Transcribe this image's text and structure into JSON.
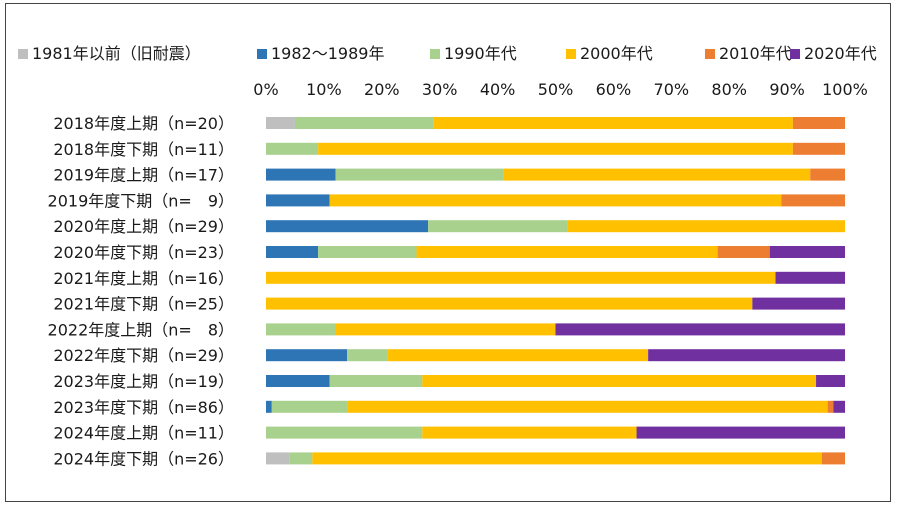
{
  "chart_data": {
    "type": "bar",
    "orientation": "horizontal",
    "stacked": "percent",
    "x_ticks": [
      "0%",
      "10%",
      "20%",
      "30%",
      "40%",
      "50%",
      "60%",
      "70%",
      "80%",
      "90%",
      "100%"
    ],
    "xlim": [
      0,
      100
    ],
    "legend_position": "top",
    "grid": false,
    "categories": [
      "2018年度上期（n=20）",
      "2018年度下期（n=11）",
      "2019年度上期（n=17）",
      "2019年度下期（n=　9）",
      "2020年度上期（n=29）",
      "2020年度下期（n=23）",
      "2021年度上期（n=16）",
      "2021年度下期（n=25）",
      "2022年度上期（n=　8）",
      "2022年度下期（n=29）",
      "2023年度上期（n=19）",
      "2023年度下期（n=86）",
      "2024年度上期（n=11）",
      "2024年度下期（n=26）"
    ],
    "series": [
      {
        "name": "1981年以前（旧耐震）",
        "color": "#BFBFBF",
        "values": [
          5,
          0,
          0,
          0,
          0,
          0,
          0,
          0,
          0,
          0,
          0,
          0,
          0,
          4
        ]
      },
      {
        "name": "1982～1989年",
        "color": "#2E75B6",
        "values": [
          0,
          0,
          12,
          11,
          28,
          9,
          0,
          0,
          0,
          14,
          11,
          1,
          0,
          0
        ]
      },
      {
        "name": "1990年代",
        "color": "#A9D18E",
        "values": [
          24,
          9,
          29,
          0,
          24,
          17,
          0,
          0,
          12,
          7,
          16,
          13,
          27,
          4
        ]
      },
      {
        "name": "2000年代",
        "color": "#FFC000",
        "values": [
          62,
          82,
          53,
          78,
          48,
          52,
          88,
          84,
          38,
          45,
          68,
          83,
          37,
          88
        ]
      },
      {
        "name": "2010年代",
        "color": "#ED7D31",
        "values": [
          9,
          9,
          6,
          11,
          0,
          9,
          0,
          0,
          0,
          0,
          0,
          1,
          0,
          4
        ]
      },
      {
        "name": "2020年代",
        "color": "#7030A0",
        "values": [
          0,
          0,
          0,
          0,
          0,
          13,
          12,
          16,
          50,
          34,
          5,
          2,
          36,
          0
        ]
      }
    ]
  }
}
